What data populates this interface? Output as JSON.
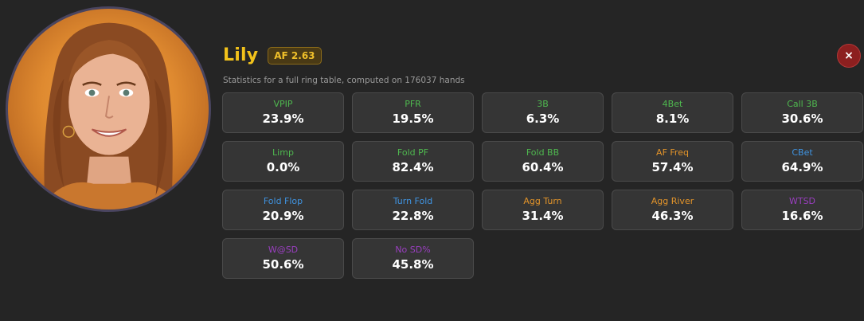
{
  "player": {
    "name": "Lily",
    "af_badge": "AF 2.63",
    "subtitle": "Statistics for a full ring table, computed on 176037 hands",
    "close_label": "×"
  },
  "colors": {
    "green": "#4fb84f",
    "blue": "#3f93e0",
    "orange": "#e3942a",
    "purple": "#9a3fc0",
    "name_gold": "#f2c21b",
    "close_red": "#8c1f1f"
  },
  "stats": [
    {
      "label": "VPIP",
      "value": "23.9%",
      "color": "green"
    },
    {
      "label": "PFR",
      "value": "19.5%",
      "color": "green"
    },
    {
      "label": "3B",
      "value": "6.3%",
      "color": "green"
    },
    {
      "label": "4Bet",
      "value": "8.1%",
      "color": "green"
    },
    {
      "label": "Call 3B",
      "value": "30.6%",
      "color": "green"
    },
    {
      "label": "Limp",
      "value": "0.0%",
      "color": "green"
    },
    {
      "label": "Fold PF",
      "value": "82.4%",
      "color": "green"
    },
    {
      "label": "Fold BB",
      "value": "60.4%",
      "color": "green"
    },
    {
      "label": "AF Freq",
      "value": "57.4%",
      "color": "orange"
    },
    {
      "label": "CBet",
      "value": "64.9%",
      "color": "blue"
    },
    {
      "label": "Fold Flop",
      "value": "20.9%",
      "color": "blue"
    },
    {
      "label": "Turn Fold",
      "value": "22.8%",
      "color": "blue"
    },
    {
      "label": "Agg Turn",
      "value": "31.4%",
      "color": "orange"
    },
    {
      "label": "Agg River",
      "value": "46.3%",
      "color": "orange"
    },
    {
      "label": "WTSD",
      "value": "16.6%",
      "color": "purple"
    },
    {
      "label": "W@SD",
      "value": "50.6%",
      "color": "purple"
    },
    {
      "label": "No SD%",
      "value": "45.8%",
      "color": "purple"
    }
  ]
}
